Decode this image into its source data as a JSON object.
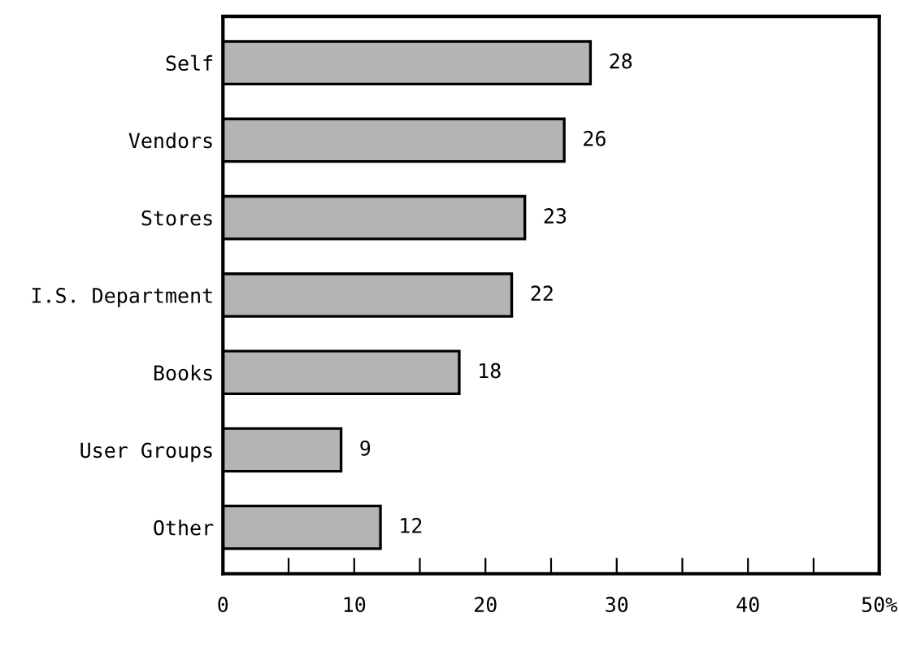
{
  "chart_data": {
    "type": "bar",
    "orientation": "horizontal",
    "categories": [
      "Self",
      "Vendors",
      "Stores",
      "I.S. Department",
      "Books",
      "User Groups",
      "Other"
    ],
    "values": [
      28,
      26,
      23,
      22,
      18,
      9,
      12
    ],
    "color": "#b4b4b4",
    "xlim": [
      0,
      50
    ],
    "xticks": [
      0,
      {
        "value": 5,
        "label": null
      },
      10,
      {
        "value": 15,
        "label": null
      },
      20,
      {
        "value": 25,
        "label": null
      },
      30,
      {
        "value": 35,
        "label": null
      },
      40,
      {
        "value": 45,
        "label": null
      },
      {
        "value": 50,
        "label": "50%"
      }
    ],
    "data_labels": true,
    "grid": false,
    "legend": false
  }
}
